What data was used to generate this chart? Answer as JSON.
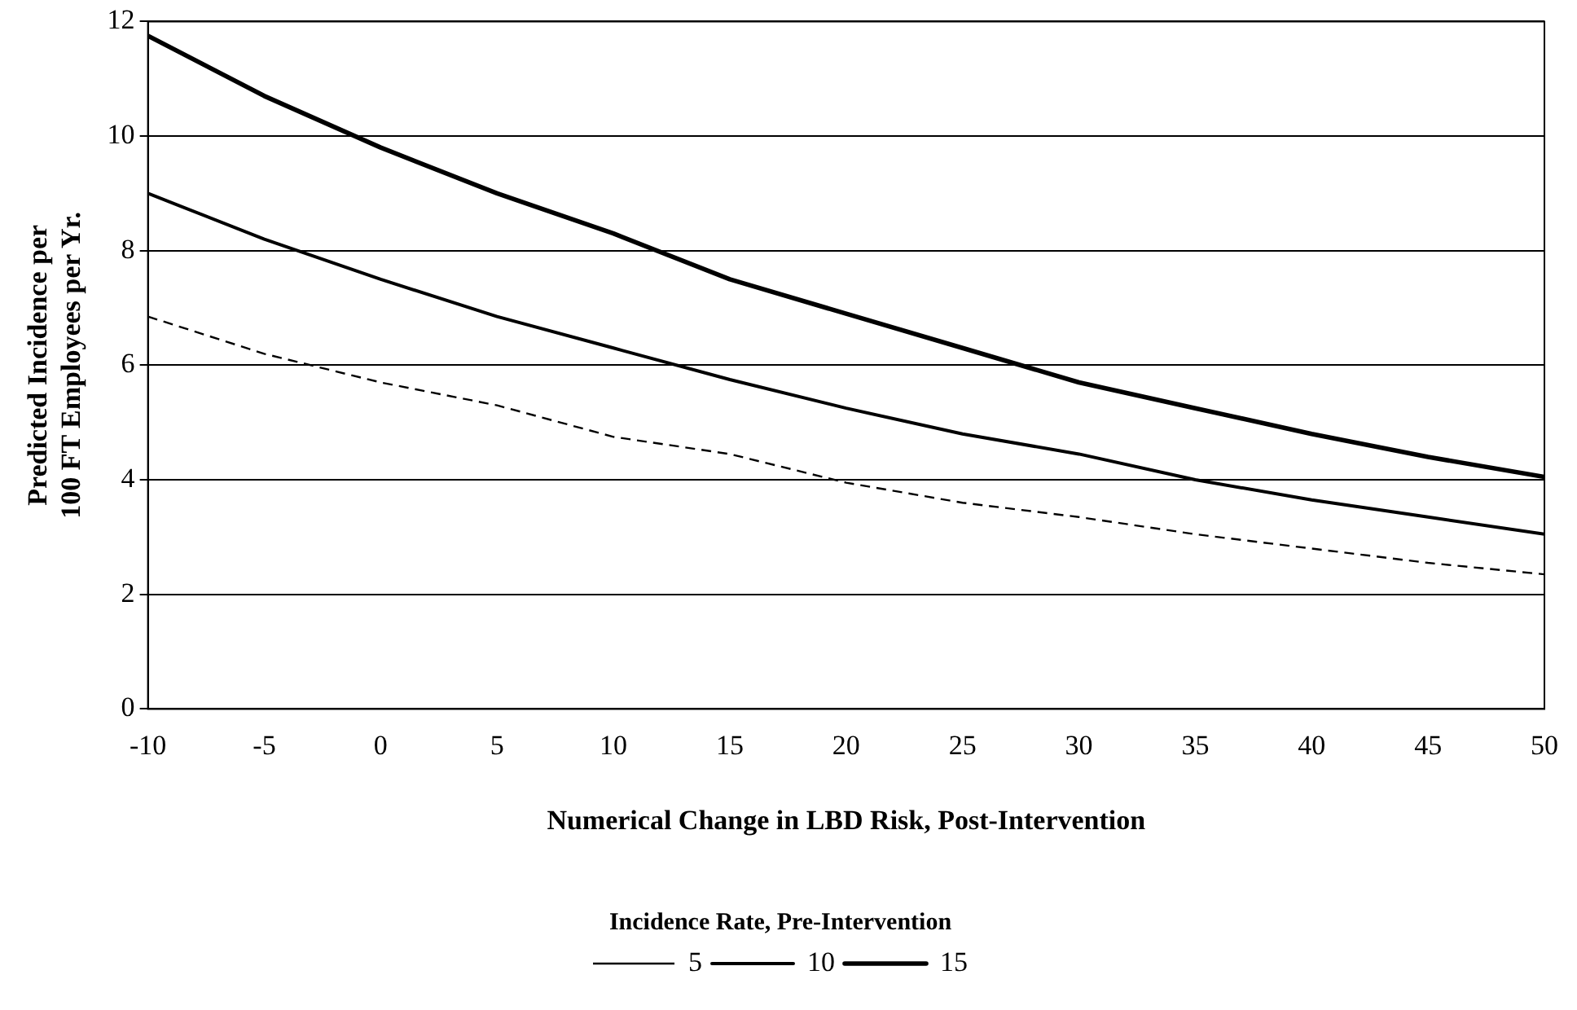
{
  "chart_data": {
    "type": "line",
    "xlabel": "Numerical Change in LBD Risk, Post-Intervention",
    "ylabel": "Predicted Incidence per\n100 FT Employees per Yr.",
    "legend_title": "Incidence Rate, Pre-Intervention",
    "x": [
      -10,
      -5,
      0,
      5,
      10,
      15,
      20,
      25,
      30,
      35,
      40,
      45,
      50
    ],
    "series": [
      {
        "name": "5",
        "color": "#000000",
        "line_style": "dashed",
        "values": [
          6.85,
          6.2,
          5.7,
          5.3,
          4.75,
          4.45,
          3.95,
          3.6,
          3.35,
          3.05,
          2.8,
          2.55,
          2.35
        ]
      },
      {
        "name": "10",
        "color": "#000000",
        "line_style": "solid",
        "values": [
          9.0,
          8.2,
          7.5,
          6.85,
          6.3,
          5.75,
          5.25,
          4.8,
          4.45,
          4.0,
          3.65,
          3.35,
          3.05
        ]
      },
      {
        "name": "15",
        "color": "#000000",
        "line_style": "solid",
        "values": [
          11.75,
          10.7,
          9.8,
          9.0,
          8.3,
          7.5,
          6.9,
          6.3,
          5.7,
          5.25,
          4.8,
          4.4,
          4.05
        ]
      }
    ],
    "xlim": [
      -10,
      50
    ],
    "xticks": [
      -10,
      -5,
      0,
      5,
      10,
      15,
      20,
      25,
      30,
      35,
      40,
      45,
      50
    ],
    "ylim": [
      0,
      12
    ],
    "yticks": [
      0,
      2,
      4,
      6,
      8,
      10,
      12
    ],
    "grid": "y",
    "legend": "bottom",
    "marker": "none"
  }
}
